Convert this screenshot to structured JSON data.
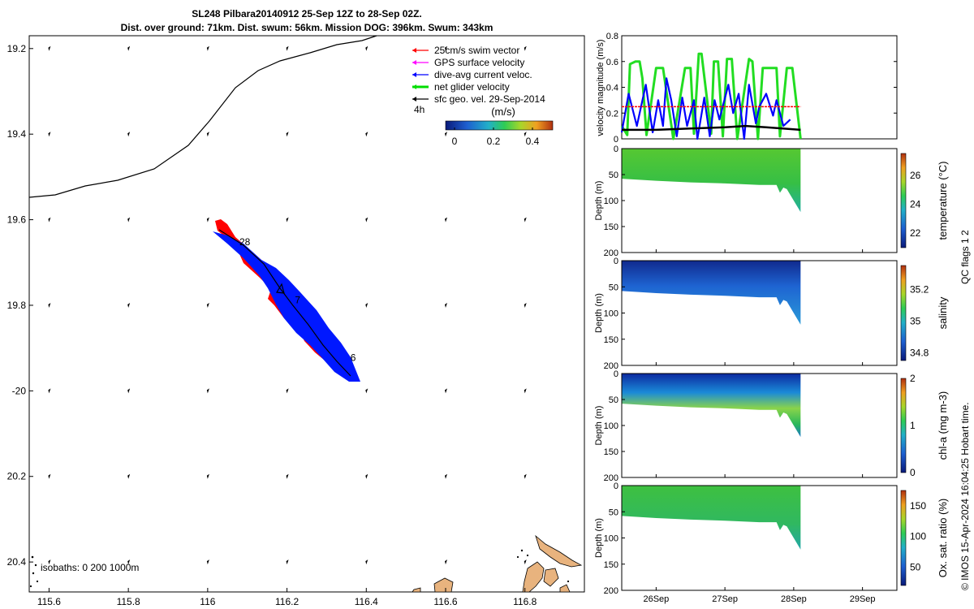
{
  "title": {
    "line1": "SL248 Pilbara20140912 25-Sep 12Z to 28-Sep 02Z.",
    "line2": "Dist. over ground: 71km. Dist. swum: 56km. Mission DOG: 396km. Swum: 343km"
  },
  "map": {
    "xlim": [
      115.55,
      116.95
    ],
    "ylim": [
      19.17,
      20.47
    ],
    "xticks": [
      115.6,
      115.8,
      116,
      116.2,
      116.4,
      116.6,
      116.8
    ],
    "xtick_labels": [
      "115.6",
      "115.8",
      "116",
      "116.2",
      "116.4",
      "116.6",
      "116.8"
    ],
    "yticks": [
      19.2,
      19.4,
      19.6,
      19.8,
      20,
      20.2,
      20.4
    ],
    "ytick_labels": [
      "19.2",
      "19.4",
      "19.6",
      "19.8",
      "-20",
      "20.2",
      "20.4"
    ],
    "isobath_label": "isobaths: 0   200  1000m",
    "day_labels": [
      {
        "text": "28",
        "x": 116.08,
        "y": 19.66
      },
      {
        "text": "7",
        "x": 116.22,
        "y": 19.795
      },
      {
        "text": "6",
        "x": 116.36,
        "y": 19.93
      }
    ],
    "legend": [
      {
        "label": "25cm/s swim vector",
        "color": "#ff0000"
      },
      {
        "label": "GPS surface velocity",
        "color": "#ff00ff"
      },
      {
        "label": "dive-avg current veloc.",
        "color": "#0000ff"
      },
      {
        "label": "net glider velocity",
        "color": "#00dd00"
      },
      {
        "label": "sfc geo. vel. 29-Sep-2014",
        "color": "#000000"
      }
    ],
    "legend_note": "4h",
    "colorbar": {
      "title": "(m/s)",
      "ticks": [
        "0",
        "0.2",
        "0.4"
      ]
    }
  },
  "chart_data": [
    {
      "type": "line",
      "title": "",
      "xlabel": "",
      "ylabel": "velocity magnitude (m/s)",
      "ylim": [
        0,
        0.8
      ],
      "xlim": [
        "25-Sep 12Z",
        "29-Sep 12Z"
      ],
      "yticks": [
        "0",
        "0.2",
        "0.4",
        "0.6",
        "0.8"
      ],
      "series": [
        {
          "name": "net glider velocity",
          "color": "#22dd22",
          "x": [
            25.5,
            25.58,
            25.62,
            25.7,
            25.76,
            25.8,
            25.86,
            26.0,
            26.1,
            26.25,
            26.42,
            26.5,
            26.55,
            26.62,
            26.66,
            26.8,
            26.84,
            26.9,
            26.97,
            27.03,
            27.1,
            27.18,
            27.35,
            27.4,
            27.48,
            27.55,
            27.75,
            27.8,
            27.9,
            27.98,
            28.1
          ],
          "y": [
            0.1,
            0.03,
            0.58,
            0.6,
            0.6,
            0.47,
            0.03,
            0.55,
            0.55,
            0.0,
            0.55,
            0.55,
            0.04,
            0.66,
            0.66,
            0.04,
            0.6,
            0.6,
            0.02,
            0.62,
            0.62,
            0.0,
            0.62,
            0.6,
            0.0,
            0.55,
            0.55,
            0.02,
            0.55,
            0.55,
            0.0
          ]
        },
        {
          "name": "dive-avg current veloc.",
          "color": "#0000ff",
          "x": [
            25.5,
            25.6,
            25.72,
            25.85,
            25.95,
            26.03,
            26.1,
            26.15,
            26.22,
            26.3,
            26.38,
            26.45,
            26.55,
            26.6,
            26.7,
            26.78,
            26.85,
            26.92,
            27.05,
            27.12,
            27.2,
            27.28,
            27.35,
            27.45,
            27.5,
            27.6,
            27.7,
            27.75,
            27.85,
            27.95
          ],
          "y": [
            0.05,
            0.35,
            0.1,
            0.42,
            0.05,
            0.3,
            0.1,
            0.47,
            0.3,
            0.02,
            0.32,
            0.1,
            0.3,
            0.0,
            0.32,
            0.02,
            0.3,
            0.15,
            0.42,
            0.2,
            0.35,
            0.0,
            0.42,
            0.12,
            0.25,
            0.35,
            0.18,
            0.3,
            0.1,
            0.15
          ]
        },
        {
          "name": "25cm/s swim vector",
          "color": "#ff0000",
          "x": [
            25.5,
            28.1
          ],
          "y": [
            0.25,
            0.25
          ]
        },
        {
          "name": "sfc geo. vel. 29-Sep-2014",
          "color": "#000000",
          "x": [
            25.5,
            26.0,
            26.5,
            27.0,
            27.3,
            27.6,
            28.1
          ],
          "y": [
            0.07,
            0.07,
            0.08,
            0.09,
            0.1,
            0.09,
            0.07
          ]
        }
      ]
    },
    {
      "type": "heatmap",
      "ylabel": "Depth (m)",
      "clabel": "temperature (°C)",
      "ctick_labels": [
        "22",
        "24",
        "26"
      ],
      "yticks": [
        "0",
        "50",
        "100",
        "150",
        "200"
      ],
      "xlim": [
        25.5,
        29.5
      ],
      "max_depth": 200
    },
    {
      "type": "heatmap",
      "ylabel": "Depth (m)",
      "clabel": "salinity",
      "ctick_labels": [
        "34.8",
        "35",
        "35.2"
      ],
      "yticks": [
        "0",
        "50",
        "100",
        "150",
        "200"
      ],
      "xlim": [
        25.5,
        29.5
      ],
      "max_depth": 200
    },
    {
      "type": "heatmap",
      "ylabel": "Depth (m)",
      "clabel": "chl-a (mg m-3)",
      "ctick_labels": [
        "0",
        "1",
        "2"
      ],
      "yticks": [
        "0",
        "50",
        "100",
        "150",
        "200"
      ],
      "xlim": [
        25.5,
        29.5
      ],
      "max_depth": 200
    },
    {
      "type": "heatmap",
      "ylabel": "Depth (m)",
      "clabel": "Ox. sat. ratio (%)",
      "ctick_labels": [
        "50",
        "100",
        "150"
      ],
      "yticks": [
        "0",
        "50",
        "100",
        "150",
        "200"
      ],
      "xlim": [
        25.5,
        29.5
      ],
      "max_depth": 200,
      "xtick_labels": [
        "26Sep",
        "27Sep",
        "28Sep",
        "29Sep"
      ]
    }
  ],
  "qc_flags_label": "QC flags 1  2",
  "footer": "© IMOS 15-Apr-2024 16:04:25 Hobart time."
}
